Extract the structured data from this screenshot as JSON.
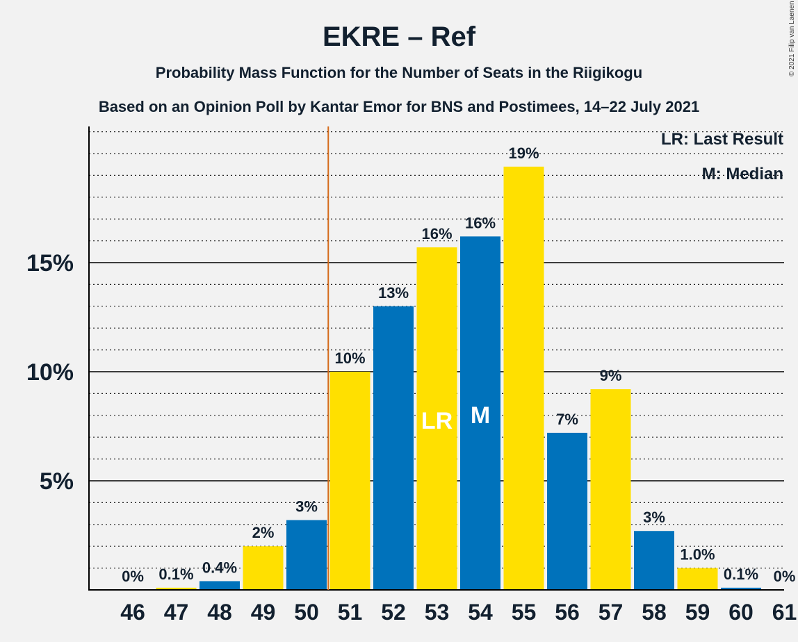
{
  "chart_data": {
    "type": "bar",
    "title": "EKRE – Ref",
    "subtitle": "Probability Mass Function for the Number of Seats in the Riigikogu",
    "subtitle2": "Based on an Opinion Poll by Kantar Emor for BNS and Postimees, 14–22 July 2021",
    "copyright": "© 2021 Filip van Laenen",
    "legend": [
      "LR: Last Result",
      "M: Median"
    ],
    "categories": [
      "46",
      "47",
      "48",
      "49",
      "50",
      "51",
      "52",
      "53",
      "54",
      "55",
      "56",
      "57",
      "58",
      "59",
      "60",
      "61"
    ],
    "values": [
      0,
      0.1,
      0.4,
      2.0,
      3.2,
      10.0,
      13.0,
      15.7,
      16.2,
      19.4,
      7.2,
      9.2,
      2.7,
      1.0,
      0.1,
      0
    ],
    "labels": [
      "0%",
      "0.1%",
      "0.4%",
      "2%",
      "3%",
      "10%",
      "13%",
      "16%",
      "16%",
      "19%",
      "7%",
      "9%",
      "3%",
      "1.0%",
      "0.1%",
      "0%"
    ],
    "yticks": [
      {
        "value": 5,
        "label": "5%"
      },
      {
        "value": 10,
        "label": "10%"
      },
      {
        "value": 15,
        "label": "15%"
      }
    ],
    "ylim": [
      0,
      21.5
    ],
    "last_result": {
      "category": "53",
      "marker": "LR"
    },
    "median": {
      "category": "54",
      "marker": "M"
    },
    "last_result_line_after": "50",
    "colors": {
      "blue": "#0072bb",
      "yellow": "#ffe000",
      "line": "#d46a1a"
    }
  }
}
